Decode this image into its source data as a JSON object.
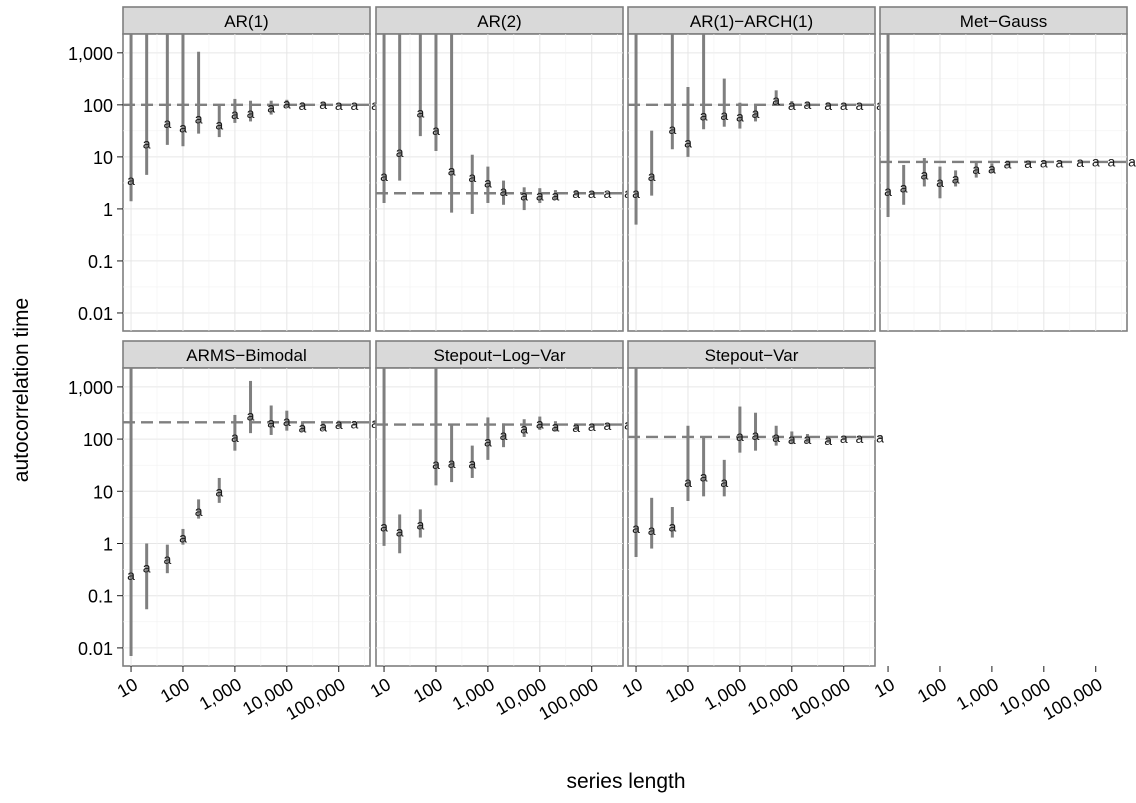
{
  "chart_data": {
    "type": "scatter",
    "xlabel": "series length",
    "ylabel": "autocorrelation time",
    "x_scale": "log10",
    "y_scale": "log10",
    "xlim": [
      7,
      400000
    ],
    "ylim": [
      0.0045,
      2300
    ],
    "y_ticks": [
      0.01,
      0.1,
      1,
      10,
      100,
      1000
    ],
    "y_tick_labels": [
      "0.01",
      "0.1",
      "1",
      "10",
      "100",
      "1,000"
    ],
    "x_ticks": [
      10,
      100,
      1000,
      10000,
      100000
    ],
    "x_tick_labels": [
      "10",
      "100",
      "1,000",
      "10,000",
      "100,000"
    ],
    "grid": true,
    "point_symbol": "a",
    "series_length": [
      10,
      20,
      50,
      100,
      200,
      500,
      1000,
      2000,
      5000,
      10000,
      20000,
      50000,
      100000,
      200000,
      500000
    ],
    "panels": [
      {
        "title": "AR(1)",
        "reference": 100,
        "estimates": [
          3.6,
          18,
          45,
          37,
          55,
          42,
          67,
          70,
          88,
          106,
          100,
          104,
          100,
          100,
          100
        ],
        "lower": [
          1.4,
          4.5,
          17,
          16,
          28,
          24,
          45,
          48,
          65,
          90,
          90,
          94,
          94,
          96,
          97
        ],
        "upper": [
          2300,
          2300,
          2300,
          2300,
          1050,
          100,
          130,
          120,
          120,
          125,
          112,
          112,
          108,
          106,
          104
        ]
      },
      {
        "title": "AR(2)",
        "reference": 2,
        "estimates": [
          4.3,
          12.5,
          72,
          33,
          5.5,
          4.1,
          3.2,
          2.2,
          1.8,
          1.8,
          1.8,
          2.0,
          2.0,
          2.0,
          2.0
        ],
        "lower": [
          1.3,
          3.5,
          25,
          13,
          0.85,
          0.8,
          1.3,
          1.2,
          0.95,
          1.3,
          1.5,
          1.8,
          1.85,
          1.9,
          1.95
        ],
        "upper": [
          2300,
          2300,
          2300,
          2300,
          2300,
          11,
          6.5,
          3.5,
          2.6,
          2.5,
          2.3,
          2.3,
          2.2,
          2.1,
          2.1
        ]
      },
      {
        "title": "AR(1)−ARCH(1)",
        "reference": 100,
        "estimates": [
          2.0,
          4.3,
          34,
          19,
          63,
          64,
          60,
          70,
          125,
          100,
          104,
          100,
          100,
          100,
          100
        ],
        "lower": [
          0.5,
          1.8,
          14,
          10,
          34,
          38,
          35,
          48,
          100,
          90,
          92,
          92,
          94,
          96,
          97
        ],
        "upper": [
          2300,
          32,
          2300,
          220,
          2300,
          320,
          110,
          100,
          190,
          118,
          116,
          112,
          108,
          106,
          104
        ]
      },
      {
        "title": "Met−Gauss",
        "reference": 8,
        "estimates": [
          2.2,
          2.6,
          4.6,
          3.3,
          3.8,
          5.9,
          6.0,
          7.4,
          7.6,
          7.8,
          7.8,
          8.0,
          8.1,
          8.1,
          8.1
        ],
        "lower": [
          0.7,
          1.2,
          2.7,
          1.6,
          2.7,
          4.0,
          4.9,
          6.6,
          7.0,
          7.4,
          7.5,
          7.8,
          7.9,
          8.0,
          8.0
        ],
        "upper": [
          2300,
          7.0,
          9.5,
          6.5,
          5.5,
          8.0,
          7.5,
          8.5,
          8.5,
          8.5,
          8.3,
          8.4,
          8.3,
          8.3,
          8.3
        ]
      },
      {
        "title": "ARMS−Bimodal",
        "reference": 210,
        "estimates": [
          0.25,
          0.35,
          0.5,
          1.3,
          4.2,
          10,
          110,
          280,
          210,
          220,
          165,
          175,
          195,
          200,
          205
        ],
        "lower": [
          0.007,
          0.055,
          0.27,
          0.95,
          3.0,
          6.0,
          60,
          130,
          120,
          145,
          140,
          150,
          170,
          180,
          190
        ],
        "upper": [
          2300,
          1.0,
          0.95,
          1.9,
          7.0,
          18,
          290,
          1300,
          440,
          350,
          220,
          220,
          225,
          222,
          220
        ]
      },
      {
        "title": "Stepout−Log−Var",
        "reference": 190,
        "estimates": [
          2.1,
          1.7,
          2.3,
          33,
          35,
          34,
          90,
          120,
          160,
          200,
          175,
          170,
          180,
          185,
          190
        ],
        "lower": [
          0.9,
          0.65,
          1.3,
          13,
          15,
          18,
          40,
          70,
          110,
          150,
          140,
          150,
          165,
          172,
          180
        ],
        "upper": [
          2300,
          3.6,
          4.5,
          2300,
          190,
          75,
          260,
          200,
          240,
          270,
          220,
          200,
          200,
          200,
          200
        ]
      },
      {
        "title": "Stepout−Var",
        "reference": 110,
        "estimates": [
          2.0,
          1.8,
          2.1,
          15,
          19,
          15,
          115,
          120,
          110,
          100,
          100,
          95,
          105,
          105,
          107
        ],
        "lower": [
          0.55,
          0.8,
          1.3,
          6.5,
          8.0,
          8.0,
          55,
          60,
          75,
          80,
          85,
          85,
          95,
          98,
          100
        ],
        "upper": [
          2300,
          7.5,
          5.0,
          180,
          105,
          40,
          420,
          320,
          180,
          140,
          125,
          112,
          115,
          114,
          113
        ]
      }
    ]
  }
}
